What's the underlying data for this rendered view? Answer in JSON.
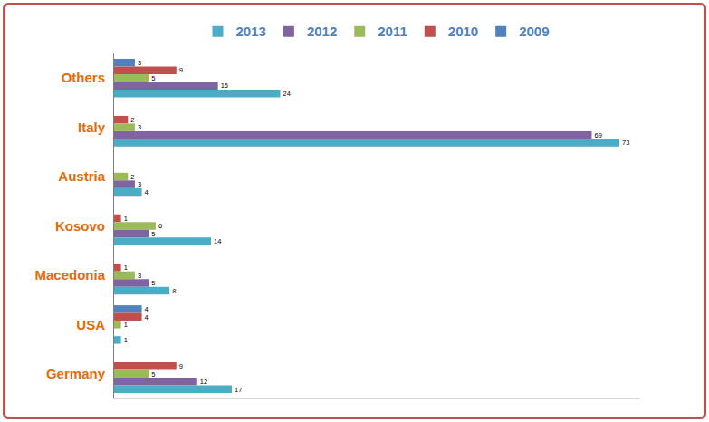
{
  "chart_data": {
    "type": "bar",
    "orientation": "horizontal",
    "categories": [
      "Others",
      "Italy",
      "Austria",
      "Kosovo",
      "Macedonia",
      "USA",
      "Germany"
    ],
    "series": [
      {
        "name": "2013",
        "color": "#4bacc6",
        "values": [
          24,
          73,
          4,
          14,
          8,
          1,
          17
        ]
      },
      {
        "name": "2012",
        "color": "#8064a2",
        "values": [
          15,
          69,
          3,
          5,
          5,
          null,
          12
        ]
      },
      {
        "name": "2011",
        "color": "#9bbb59",
        "values": [
          5,
          3,
          2,
          6,
          3,
          1,
          5
        ]
      },
      {
        "name": "2010",
        "color": "#c0504d",
        "values": [
          9,
          2,
          null,
          1,
          1,
          4,
          9
        ]
      },
      {
        "name": "2009",
        "color": "#4f81bd",
        "values": [
          3,
          null,
          null,
          null,
          null,
          4,
          null
        ]
      }
    ],
    "xlim": [
      0,
      76
    ],
    "data_labels": true,
    "legend": "top",
    "grid": false,
    "tick_labels": "y"
  }
}
